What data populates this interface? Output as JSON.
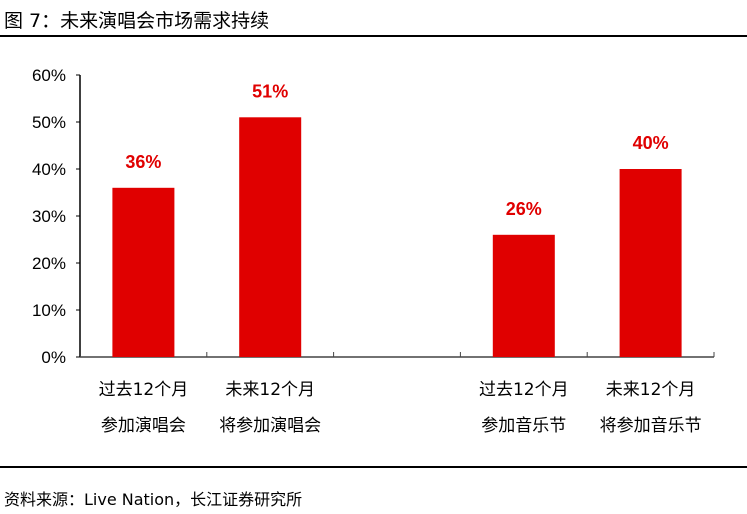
{
  "title": "图 7：未来演唱会市场需求持续",
  "source": "资料来源：Live Nation，长江证券研究所",
  "chart_data": {
    "type": "bar",
    "title": "图 7：未来演唱会市场需求持续",
    "xlabel": "",
    "ylabel": "",
    "ylim": [
      0,
      60
    ],
    "yticks": [
      "0%",
      "10%",
      "20%",
      "30%",
      "40%",
      "50%",
      "60%"
    ],
    "categories": [
      [
        "过去12个月",
        "参加演唱会"
      ],
      [
        "未来12个月",
        "将参加演唱会"
      ],
      [
        "",
        ""
      ],
      [
        "过去12个月",
        "参加音乐节"
      ],
      [
        "未来12个月",
        "将参加音乐节"
      ]
    ],
    "values": [
      36,
      51,
      null,
      26,
      40
    ],
    "data_labels": [
      "36%",
      "51%",
      "",
      "26%",
      "40%"
    ],
    "color": "#e00000",
    "grid": false,
    "legend": "none"
  }
}
